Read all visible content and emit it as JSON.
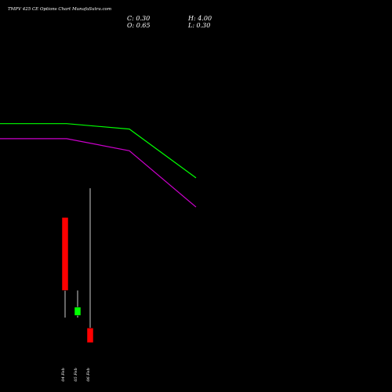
{
  "header": {
    "title": "TMPV 425 CE Options  Chart MunafaSutra.com",
    "close": "C: 0.30",
    "open": "O: 0.65",
    "high": "H: 4.00",
    "low": "L: 0.30"
  },
  "chart_data": {
    "type": "candlestick",
    "title": "TMPV 425 CE Options  Chart MunafaSutra.com",
    "x_tick_labels": [
      "04 Feb",
      "05 Feb",
      "06 Feb"
    ],
    "candles": [
      {
        "date": "04 Feb",
        "open": 3.3,
        "high": 3.3,
        "low": 0.9,
        "close": 1.55,
        "color": "#ff0000"
      },
      {
        "date": "05 Feb",
        "open": 0.95,
        "high": 1.55,
        "low": 0.9,
        "close": 1.15,
        "color": "#00ff00"
      },
      {
        "date": "06 Feb",
        "open": 0.65,
        "high": 4.0,
        "low": 0.3,
        "close": 0.3,
        "color": "#ff0000"
      }
    ],
    "lines": [
      {
        "color": "#00ff00",
        "x": [
          "04 Feb",
          "05 Feb",
          "06 Feb"
        ],
        "values": [
          5.55,
          5.42,
          4.25
        ]
      },
      {
        "color": "#cc00cc",
        "x": [
          "04 Feb",
          "05 Feb",
          "06 Feb"
        ],
        "values": [
          5.19,
          4.9,
          3.55
        ]
      }
    ],
    "grid": false,
    "legend": "none"
  }
}
